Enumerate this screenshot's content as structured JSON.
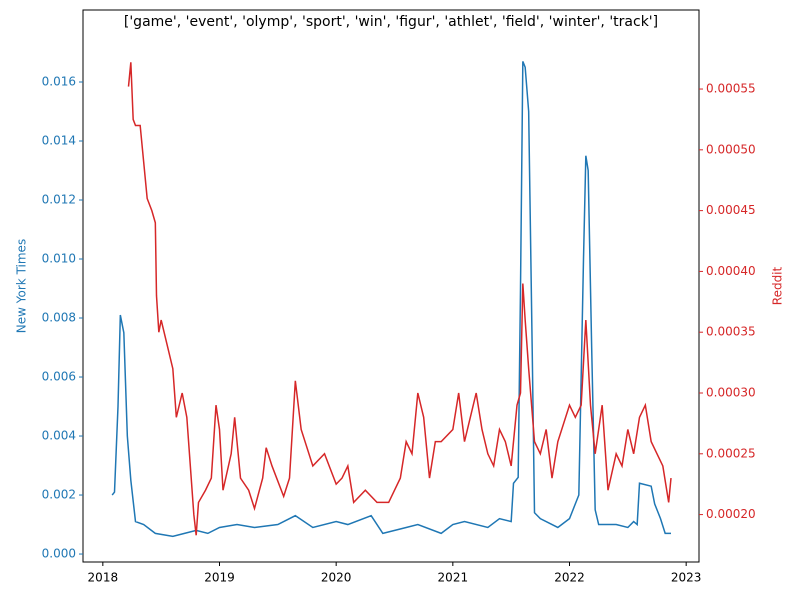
{
  "chart_data": {
    "type": "line",
    "title": "['game', 'event', 'olymp', 'sport', 'win', 'figur', 'athlet', 'field', 'winter', 'track']",
    "ylabel": "New York Times",
    "y2label": "Reddit",
    "xlim": [
      2017.83,
      2023.11
    ],
    "xticks": [
      2018,
      2019,
      2020,
      2021,
      2022,
      2023
    ],
    "ylim": [
      -0.00027,
      0.01844
    ],
    "yticks": [
      {
        "value": 0,
        "label": "0.000"
      },
      {
        "value": 0.002,
        "label": "0.002"
      },
      {
        "value": 0.004,
        "label": "0.004"
      },
      {
        "value": 0.006,
        "label": "0.006"
      },
      {
        "value": 0.008,
        "label": "0.008"
      },
      {
        "value": 0.01,
        "label": "0.010"
      },
      {
        "value": 0.012,
        "label": "0.012"
      },
      {
        "value": 0.014,
        "label": "0.014"
      },
      {
        "value": 0.016,
        "label": "0.016"
      }
    ],
    "y2lim": [
      0.000161,
      0.000615
    ],
    "y2ticks": [
      {
        "value": 0.0002,
        "label": "0.00020"
      },
      {
        "value": 0.00025,
        "label": "0.00025"
      },
      {
        "value": 0.0003,
        "label": "0.00030"
      },
      {
        "value": 0.00035,
        "label": "0.00035"
      },
      {
        "value": 0.0004,
        "label": "0.00040"
      },
      {
        "value": 0.00045,
        "label": "0.00045"
      },
      {
        "value": 0.0005,
        "label": "0.00050"
      },
      {
        "value": 0.00055,
        "label": "0.00055"
      }
    ],
    "series": [
      {
        "color": "#1f77b4",
        "x": [
          2018.08,
          2018.1,
          2018.13,
          2018.15,
          2018.18,
          2018.21,
          2018.24,
          2018.28,
          2018.35,
          2018.45,
          2018.6,
          2018.7,
          2018.8,
          2018.9,
          2019.0,
          2019.15,
          2019.3,
          2019.5,
          2019.65,
          2019.8,
          2020.0,
          2020.1,
          2020.3,
          2020.4,
          2020.6,
          2020.7,
          2020.9,
          2021.0,
          2021.1,
          2021.3,
          2021.4,
          2021.5,
          2021.52,
          2021.56,
          2021.58,
          2021.6,
          2021.62,
          2021.65,
          2021.68,
          2021.7,
          2021.75,
          2021.9,
          2022.0,
          2022.08,
          2022.12,
          2022.14,
          2022.16,
          2022.19,
          2022.22,
          2022.25,
          2022.4,
          2022.5,
          2022.55,
          2022.58,
          2022.6,
          2022.7,
          2022.73,
          2022.78,
          2022.82,
          2022.87
        ],
        "values": [
          0.002,
          0.0021,
          0.005,
          0.0081,
          0.0075,
          0.004,
          0.0025,
          0.0011,
          0.001,
          0.0007,
          0.0006,
          0.0007,
          0.0008,
          0.0007,
          0.0009,
          0.001,
          0.0009,
          0.001,
          0.0013,
          0.0009,
          0.0011,
          0.001,
          0.0013,
          0.0007,
          0.0009,
          0.001,
          0.0007,
          0.001,
          0.0011,
          0.0009,
          0.0012,
          0.0011,
          0.0024,
          0.0026,
          0.009,
          0.0167,
          0.0165,
          0.015,
          0.007,
          0.0014,
          0.0012,
          0.0009,
          0.0012,
          0.002,
          0.01,
          0.0135,
          0.013,
          0.007,
          0.0015,
          0.001,
          0.001,
          0.0009,
          0.0011,
          0.001,
          0.0024,
          0.0023,
          0.0017,
          0.0012,
          0.0007,
          0.0007
        ]
      },
      {
        "color": "#d62728",
        "axis": "y2",
        "x": [
          2018.22,
          2018.24,
          2018.26,
          2018.28,
          2018.32,
          2018.35,
          2018.38,
          2018.42,
          2018.45,
          2018.46,
          2018.48,
          2018.5,
          2018.55,
          2018.6,
          2018.63,
          2018.68,
          2018.72,
          2018.75,
          2018.78,
          2018.8,
          2018.82,
          2018.88,
          2018.93,
          2018.97,
          2019.0,
          2019.03,
          2019.1,
          2019.13,
          2019.18,
          2019.25,
          2019.3,
          2019.37,
          2019.4,
          2019.45,
          2019.55,
          2019.6,
          2019.65,
          2019.7,
          2019.8,
          2019.9,
          2020.0,
          2020.05,
          2020.1,
          2020.15,
          2020.25,
          2020.35,
          2020.45,
          2020.55,
          2020.6,
          2020.65,
          2020.7,
          2020.75,
          2020.8,
          2020.85,
          2020.9,
          2021.0,
          2021.05,
          2021.1,
          2021.15,
          2021.2,
          2021.25,
          2021.3,
          2021.35,
          2021.4,
          2021.45,
          2021.5,
          2021.55,
          2021.58,
          2021.6,
          2021.62,
          2021.65,
          2021.7,
          2021.75,
          2021.8,
          2021.85,
          2021.9,
          2022.0,
          2022.05,
          2022.1,
          2022.14,
          2022.18,
          2022.22,
          2022.28,
          2022.33,
          2022.4,
          2022.45,
          2022.5,
          2022.55,
          2022.6,
          2022.65,
          2022.7,
          2022.75,
          2022.8,
          2022.85,
          2022.87
        ],
        "values": [
          0.000552,
          0.000572,
          0.000525,
          0.00052,
          0.00052,
          0.00049,
          0.00046,
          0.00045,
          0.00044,
          0.00038,
          0.00035,
          0.00036,
          0.00034,
          0.00032,
          0.00028,
          0.0003,
          0.00028,
          0.00024,
          0.0002,
          0.000183,
          0.00021,
          0.00022,
          0.00023,
          0.00029,
          0.00027,
          0.00022,
          0.00025,
          0.00028,
          0.00023,
          0.00022,
          0.000205,
          0.00023,
          0.000255,
          0.00024,
          0.000215,
          0.00023,
          0.00031,
          0.00027,
          0.00024,
          0.00025,
          0.000225,
          0.00023,
          0.00024,
          0.00021,
          0.00022,
          0.00021,
          0.00021,
          0.00023,
          0.00026,
          0.00025,
          0.0003,
          0.00028,
          0.00023,
          0.00026,
          0.00026,
          0.00027,
          0.0003,
          0.00026,
          0.00028,
          0.0003,
          0.00027,
          0.00025,
          0.00024,
          0.00027,
          0.00026,
          0.00024,
          0.00029,
          0.0003,
          0.00039,
          0.00036,
          0.00032,
          0.00026,
          0.00025,
          0.00027,
          0.00023,
          0.00026,
          0.00029,
          0.00028,
          0.00029,
          0.00036,
          0.00029,
          0.00025,
          0.00029,
          0.00022,
          0.00025,
          0.00024,
          0.00027,
          0.00025,
          0.00028,
          0.00029,
          0.00026,
          0.00025,
          0.00024,
          0.00021,
          0.00023
        ]
      }
    ]
  }
}
